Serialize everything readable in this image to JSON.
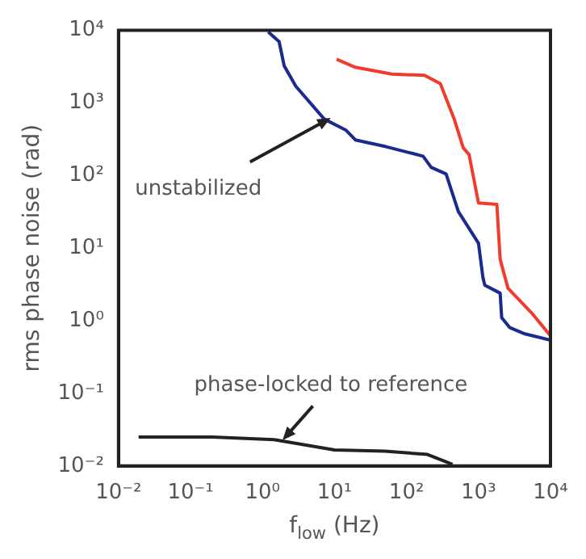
{
  "chart_data": {
    "type": "line",
    "xlabel": "f$_{low}$ (Hz)",
    "ylabel": "rms phase noise (rad)",
    "log": "xy",
    "grid": false,
    "legend": false,
    "marker": "none",
    "line_style": "solid",
    "xlim": [
      0.01,
      10000
    ],
    "ylim": [
      0.01,
      10000
    ],
    "xticks": [
      {
        "value": 0.01,
        "label": "10⁻²"
      },
      {
        "value": 0.1,
        "label": "10⁻¹"
      },
      {
        "value": 1,
        "label": "10⁰"
      },
      {
        "value": 10,
        "label": "10¹"
      },
      {
        "value": 100,
        "label": "10²"
      },
      {
        "value": 1000,
        "label": "10³"
      },
      {
        "value": 10000,
        "label": "10⁴"
      }
    ],
    "yticks": [
      {
        "value": 0.01,
        "label": "10⁻²"
      },
      {
        "value": 0.1,
        "label": "10⁻¹"
      },
      {
        "value": 1,
        "label": "10⁰"
      },
      {
        "value": 10,
        "label": "10¹"
      },
      {
        "value": 100,
        "label": "10²"
      },
      {
        "value": 1000,
        "label": "10³"
      },
      {
        "value": 10000,
        "label": "10⁴"
      }
    ],
    "series": [
      {
        "color": "#1a2a8f",
        "x": [
          1.2,
          1.7,
          2,
          2.9,
          7.2,
          14.5,
          19.5,
          52,
          170,
          220,
          355,
          525,
          1000,
          1150,
          1220,
          2000,
          2100,
          2700,
          4400,
          10000
        ],
        "values": [
          9500,
          7000,
          3250,
          1700,
          600,
          420,
          310,
          250,
          185,
          130,
          105,
          32,
          11.7,
          4,
          3.1,
          2.4,
          1.1,
          0.81,
          0.66,
          0.54
        ]
      },
      {
        "color": "#f03c2c",
        "x": [
          10.7,
          19.5,
          63,
          178,
          295,
          460,
          615,
          740,
          1000,
          1800,
          2000,
          2570,
          5400,
          10000
        ],
        "values": [
          4000,
          3100,
          2500,
          2400,
          1850,
          600,
          240,
          195,
          42,
          40,
          7,
          2.8,
          1.3,
          0.62
        ]
      },
      {
        "color": "#222222",
        "x": [
          0.019,
          0.2,
          1.45,
          10,
          50,
          195,
          325,
          435
        ],
        "values": [
          0.025,
          0.025,
          0.023,
          0.0166,
          0.016,
          0.0144,
          0.0118,
          0.0105
        ]
      }
    ],
    "annotations": [
      {
        "text": "unstabilized",
        "x": 8,
        "y": 560
      },
      {
        "text": "phase-locked to reference",
        "x": 2.1,
        "y": 0.025
      }
    ]
  }
}
